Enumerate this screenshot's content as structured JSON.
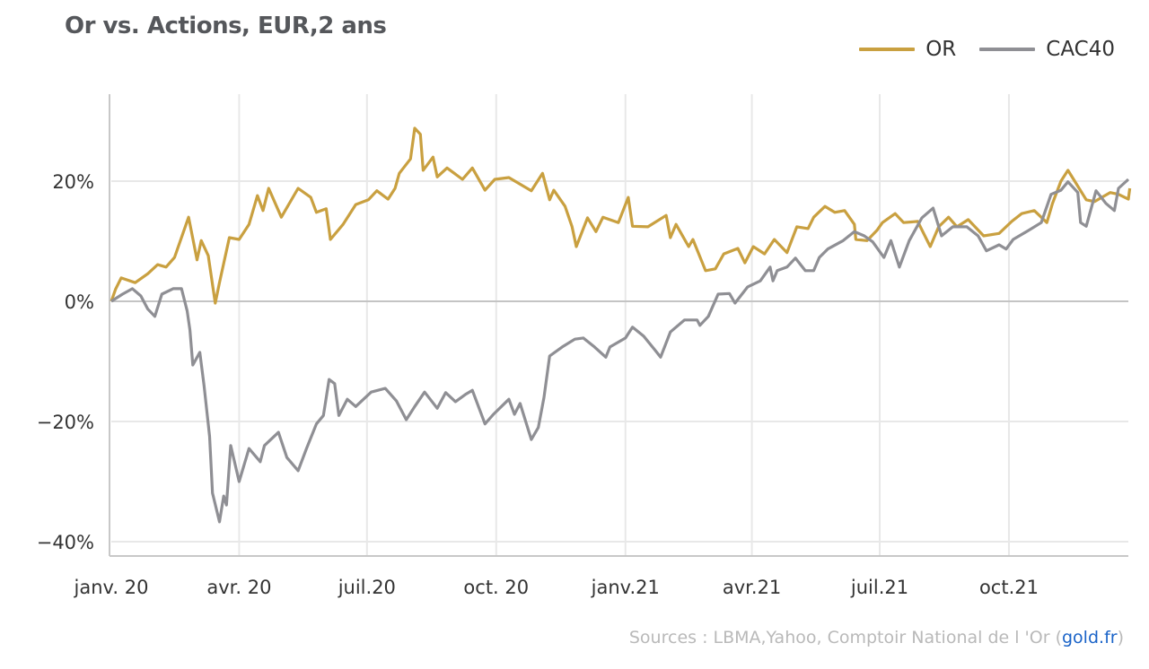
{
  "title": "Or vs. Actions, EUR,2  ans",
  "legend": [
    {
      "name": "OR",
      "color": "#c9a040"
    },
    {
      "name": "CAC40",
      "color": "#8f8f94"
    }
  ],
  "sources": {
    "prefix": "Sources : LBMA,Yahoo, Comptoir National de l  'Or (",
    "link": "gold.fr",
    "suffix": ")"
  },
  "chart_data": {
    "type": "line",
    "title": "Or vs. Actions, EUR,2  ans",
    "xlabel": "",
    "ylabel": "",
    "xlim": [
      "2020-01-01",
      "2021-12-26"
    ],
    "ylim": [
      -42,
      34
    ],
    "grid": true,
    "legend_position": "top-right",
    "x_ticks": [
      {
        "date": "2020-01-01",
        "label": "janv. 20"
      },
      {
        "date": "2020-04-01",
        "label": "avr. 20"
      },
      {
        "date": "2020-07-01",
        "label": "juil.20"
      },
      {
        "date": "2020-10-01",
        "label": "oct. 20"
      },
      {
        "date": "2021-01-01",
        "label": "janv.21"
      },
      {
        "date": "2021-04-01",
        "label": "avr.21"
      },
      {
        "date": "2021-07-01",
        "label": "juil.21"
      },
      {
        "date": "2021-10-01",
        "label": "oct.21"
      }
    ],
    "y_ticks": [
      {
        "value": 20,
        "label": "20%"
      },
      {
        "value": 0,
        "label": "0%"
      },
      {
        "value": -20,
        "label": "−20%"
      },
      {
        "value": -40,
        "label": "−40%"
      }
    ],
    "series": [
      {
        "name": "OR",
        "color": "#c9a040",
        "points": [
          [
            "2020-01-01",
            0
          ],
          [
            "2020-01-04",
            2.0
          ],
          [
            "2020-01-08",
            3.9
          ],
          [
            "2020-01-18",
            3.1
          ],
          [
            "2020-01-27",
            4.6
          ],
          [
            "2020-02-03",
            6.1
          ],
          [
            "2020-02-09",
            5.7
          ],
          [
            "2020-02-15",
            7.3
          ],
          [
            "2020-02-25",
            14.0
          ],
          [
            "2020-03-02",
            6.9
          ],
          [
            "2020-03-05",
            10.1
          ],
          [
            "2020-03-10",
            7.6
          ],
          [
            "2020-03-15",
            -0.3
          ],
          [
            "2020-03-18",
            3.1
          ],
          [
            "2020-03-25",
            10.6
          ],
          [
            "2020-04-01",
            10.3
          ],
          [
            "2020-04-08",
            12.8
          ],
          [
            "2020-04-14",
            17.6
          ],
          [
            "2020-04-18",
            15.1
          ],
          [
            "2020-04-22",
            18.8
          ],
          [
            "2020-05-01",
            14.0
          ],
          [
            "2020-05-13",
            18.8
          ],
          [
            "2020-05-22",
            17.3
          ],
          [
            "2020-05-26",
            14.8
          ],
          [
            "2020-06-02",
            15.4
          ],
          [
            "2020-06-05",
            10.3
          ],
          [
            "2020-06-14",
            12.8
          ],
          [
            "2020-06-23",
            16.1
          ],
          [
            "2020-07-02",
            16.9
          ],
          [
            "2020-07-08",
            18.4
          ],
          [
            "2020-07-16",
            17.0
          ],
          [
            "2020-07-21",
            18.8
          ],
          [
            "2020-07-24",
            21.3
          ],
          [
            "2020-08-01",
            23.7
          ],
          [
            "2020-08-04",
            28.8
          ],
          [
            "2020-08-08",
            27.8
          ],
          [
            "2020-08-10",
            21.8
          ],
          [
            "2020-08-17",
            24.0
          ],
          [
            "2020-08-20",
            20.7
          ],
          [
            "2020-08-27",
            22.2
          ],
          [
            "2020-09-07",
            20.3
          ],
          [
            "2020-09-14",
            22.2
          ],
          [
            "2020-09-23",
            18.5
          ],
          [
            "2020-09-30",
            20.3
          ],
          [
            "2020-10-10",
            20.6
          ],
          [
            "2020-10-26",
            18.4
          ],
          [
            "2020-11-03",
            21.3
          ],
          [
            "2020-11-08",
            16.9
          ],
          [
            "2020-11-11",
            18.5
          ],
          [
            "2020-11-19",
            15.8
          ],
          [
            "2020-11-24",
            12.4
          ],
          [
            "2020-11-27",
            9.1
          ],
          [
            "2020-12-05",
            13.9
          ],
          [
            "2020-12-11",
            11.6
          ],
          [
            "2020-12-16",
            14.0
          ],
          [
            "2020-12-27",
            13.1
          ],
          [
            "2021-01-03",
            17.3
          ],
          [
            "2021-01-06",
            12.5
          ],
          [
            "2021-01-17",
            12.4
          ],
          [
            "2021-01-30",
            14.3
          ],
          [
            "2021-02-02",
            10.6
          ],
          [
            "2021-02-06",
            12.8
          ],
          [
            "2021-02-15",
            9.1
          ],
          [
            "2021-02-18",
            10.3
          ],
          [
            "2021-02-27",
            5.1
          ],
          [
            "2021-03-06",
            5.4
          ],
          [
            "2021-03-12",
            7.9
          ],
          [
            "2021-03-22",
            8.8
          ],
          [
            "2021-03-27",
            6.4
          ],
          [
            "2021-04-02",
            9.1
          ],
          [
            "2021-04-10",
            7.9
          ],
          [
            "2021-04-17",
            10.3
          ],
          [
            "2021-04-26",
            8.1
          ],
          [
            "2021-05-03",
            12.4
          ],
          [
            "2021-05-11",
            12.1
          ],
          [
            "2021-05-15",
            14.0
          ],
          [
            "2021-05-23",
            15.8
          ],
          [
            "2021-05-30",
            14.8
          ],
          [
            "2021-06-06",
            15.1
          ],
          [
            "2021-06-13",
            12.8
          ],
          [
            "2021-06-14",
            10.3
          ],
          [
            "2021-06-22",
            10.1
          ],
          [
            "2021-06-29",
            11.8
          ],
          [
            "2021-07-03",
            13.1
          ],
          [
            "2021-07-12",
            14.6
          ],
          [
            "2021-07-18",
            13.1
          ],
          [
            "2021-07-28",
            13.3
          ],
          [
            "2021-08-06",
            9.1
          ],
          [
            "2021-08-12",
            12.4
          ],
          [
            "2021-08-19",
            14.0
          ],
          [
            "2021-08-25",
            12.4
          ],
          [
            "2021-09-02",
            13.6
          ],
          [
            "2021-09-13",
            10.9
          ],
          [
            "2021-09-24",
            11.3
          ],
          [
            "2021-10-03",
            13.3
          ],
          [
            "2021-10-10",
            14.6
          ],
          [
            "2021-10-19",
            15.1
          ],
          [
            "2021-10-28",
            13.1
          ],
          [
            "2021-11-01",
            16.3
          ],
          [
            "2021-11-07",
            20.0
          ],
          [
            "2021-11-12",
            21.8
          ],
          [
            "2021-11-16",
            20.3
          ],
          [
            "2021-11-25",
            16.9
          ],
          [
            "2021-12-01",
            16.6
          ],
          [
            "2021-12-12",
            18.1
          ],
          [
            "2021-12-18",
            17.8
          ],
          [
            "2021-12-25",
            17.0
          ],
          [
            "2021-12-26",
            18.8
          ]
        ]
      },
      {
        "name": "CAC40",
        "color": "#8f8f94",
        "points": [
          [
            "2020-01-01",
            0
          ],
          [
            "2020-01-09",
            1.2
          ],
          [
            "2020-01-16",
            2.1
          ],
          [
            "2020-01-22",
            0.9
          ],
          [
            "2020-01-27",
            -1.3
          ],
          [
            "2020-02-01",
            -2.5
          ],
          [
            "2020-02-06",
            1.2
          ],
          [
            "2020-02-14",
            2.1
          ],
          [
            "2020-02-20",
            2.1
          ],
          [
            "2020-02-24",
            -1.6
          ],
          [
            "2020-02-26",
            -4.8
          ],
          [
            "2020-02-28",
            -10.6
          ],
          [
            "2020-03-04",
            -8.5
          ],
          [
            "2020-03-07",
            -14.0
          ],
          [
            "2020-03-11",
            -22.5
          ],
          [
            "2020-03-13",
            -31.9
          ],
          [
            "2020-03-18",
            -36.7
          ],
          [
            "2020-03-21",
            -32.4
          ],
          [
            "2020-03-23",
            -33.9
          ],
          [
            "2020-03-26",
            -24.0
          ],
          [
            "2020-04-01",
            -30.0
          ],
          [
            "2020-04-08",
            -24.5
          ],
          [
            "2020-04-16",
            -26.7
          ],
          [
            "2020-04-19",
            -24.0
          ],
          [
            "2020-04-29",
            -21.8
          ],
          [
            "2020-05-05",
            -26.0
          ],
          [
            "2020-05-13",
            -28.2
          ],
          [
            "2020-05-19",
            -24.5
          ],
          [
            "2020-05-26",
            -20.4
          ],
          [
            "2020-05-31",
            -19.0
          ],
          [
            "2020-06-04",
            -13.0
          ],
          [
            "2020-06-08",
            -13.7
          ],
          [
            "2020-06-11",
            -19.0
          ],
          [
            "2020-06-17",
            -16.3
          ],
          [
            "2020-06-23",
            -17.5
          ],
          [
            "2020-07-04",
            -15.1
          ],
          [
            "2020-07-14",
            -14.5
          ],
          [
            "2020-07-22",
            -16.6
          ],
          [
            "2020-07-29",
            -19.7
          ],
          [
            "2020-08-04",
            -17.5
          ],
          [
            "2020-08-11",
            -15.1
          ],
          [
            "2020-08-20",
            -17.8
          ],
          [
            "2020-08-26",
            -15.2
          ],
          [
            "2020-09-02",
            -16.7
          ],
          [
            "2020-09-09",
            -15.5
          ],
          [
            "2020-09-14",
            -14.8
          ],
          [
            "2020-09-23",
            -20.4
          ],
          [
            "2020-09-29",
            -18.8
          ],
          [
            "2020-10-10",
            -16.3
          ],
          [
            "2020-10-14",
            -18.8
          ],
          [
            "2020-10-18",
            -17.0
          ],
          [
            "2020-10-26",
            -23.0
          ],
          [
            "2020-10-31",
            -21.0
          ],
          [
            "2020-11-04",
            -16.0
          ],
          [
            "2020-11-08",
            -9.1
          ],
          [
            "2020-11-17",
            -7.6
          ],
          [
            "2020-11-26",
            -6.3
          ],
          [
            "2020-12-02",
            -6.1
          ],
          [
            "2020-12-10",
            -7.6
          ],
          [
            "2020-12-18",
            -9.3
          ],
          [
            "2020-12-21",
            -7.6
          ],
          [
            "2021-01-01",
            -6.1
          ],
          [
            "2021-01-06",
            -4.3
          ],
          [
            "2021-01-14",
            -5.8
          ],
          [
            "2021-01-22",
            -8.1
          ],
          [
            "2021-01-26",
            -9.3
          ],
          [
            "2021-02-02",
            -5.1
          ],
          [
            "2021-02-12",
            -3.1
          ],
          [
            "2021-02-21",
            -3.1
          ],
          [
            "2021-02-23",
            -4.0
          ],
          [
            "2021-03-01",
            -2.5
          ],
          [
            "2021-03-08",
            1.2
          ],
          [
            "2021-03-16",
            1.3
          ],
          [
            "2021-03-20",
            -0.3
          ],
          [
            "2021-03-29",
            2.4
          ],
          [
            "2021-04-07",
            3.4
          ],
          [
            "2021-04-14",
            5.7
          ],
          [
            "2021-04-16",
            3.4
          ],
          [
            "2021-04-19",
            5.1
          ],
          [
            "2021-04-26",
            5.7
          ],
          [
            "2021-05-02",
            7.2
          ],
          [
            "2021-05-09",
            5.1
          ],
          [
            "2021-05-15",
            5.1
          ],
          [
            "2021-05-19",
            7.3
          ],
          [
            "2021-05-25",
            8.7
          ],
          [
            "2021-06-05",
            10.1
          ],
          [
            "2021-06-13",
            11.6
          ],
          [
            "2021-06-20",
            10.9
          ],
          [
            "2021-06-26",
            9.9
          ],
          [
            "2021-07-04",
            7.3
          ],
          [
            "2021-07-09",
            10.1
          ],
          [
            "2021-07-15",
            5.7
          ],
          [
            "2021-07-22",
            10.1
          ],
          [
            "2021-07-31",
            13.9
          ],
          [
            "2021-08-08",
            15.5
          ],
          [
            "2021-08-14",
            10.9
          ],
          [
            "2021-08-22",
            12.4
          ],
          [
            "2021-09-01",
            12.4
          ],
          [
            "2021-09-09",
            10.9
          ],
          [
            "2021-09-15",
            8.4
          ],
          [
            "2021-09-24",
            9.4
          ],
          [
            "2021-09-29",
            8.7
          ],
          [
            "2021-10-04",
            10.3
          ],
          [
            "2021-10-15",
            11.8
          ],
          [
            "2021-10-24",
            13.1
          ],
          [
            "2021-10-31",
            17.8
          ],
          [
            "2021-11-07",
            18.5
          ],
          [
            "2021-11-12",
            19.9
          ],
          [
            "2021-11-19",
            18.1
          ],
          [
            "2021-11-21",
            13.1
          ],
          [
            "2021-11-25",
            12.5
          ],
          [
            "2021-12-02",
            18.4
          ],
          [
            "2021-12-09",
            16.3
          ],
          [
            "2021-12-15",
            15.1
          ],
          [
            "2021-12-18",
            18.8
          ],
          [
            "2021-12-25",
            20.3
          ]
        ]
      }
    ]
  }
}
